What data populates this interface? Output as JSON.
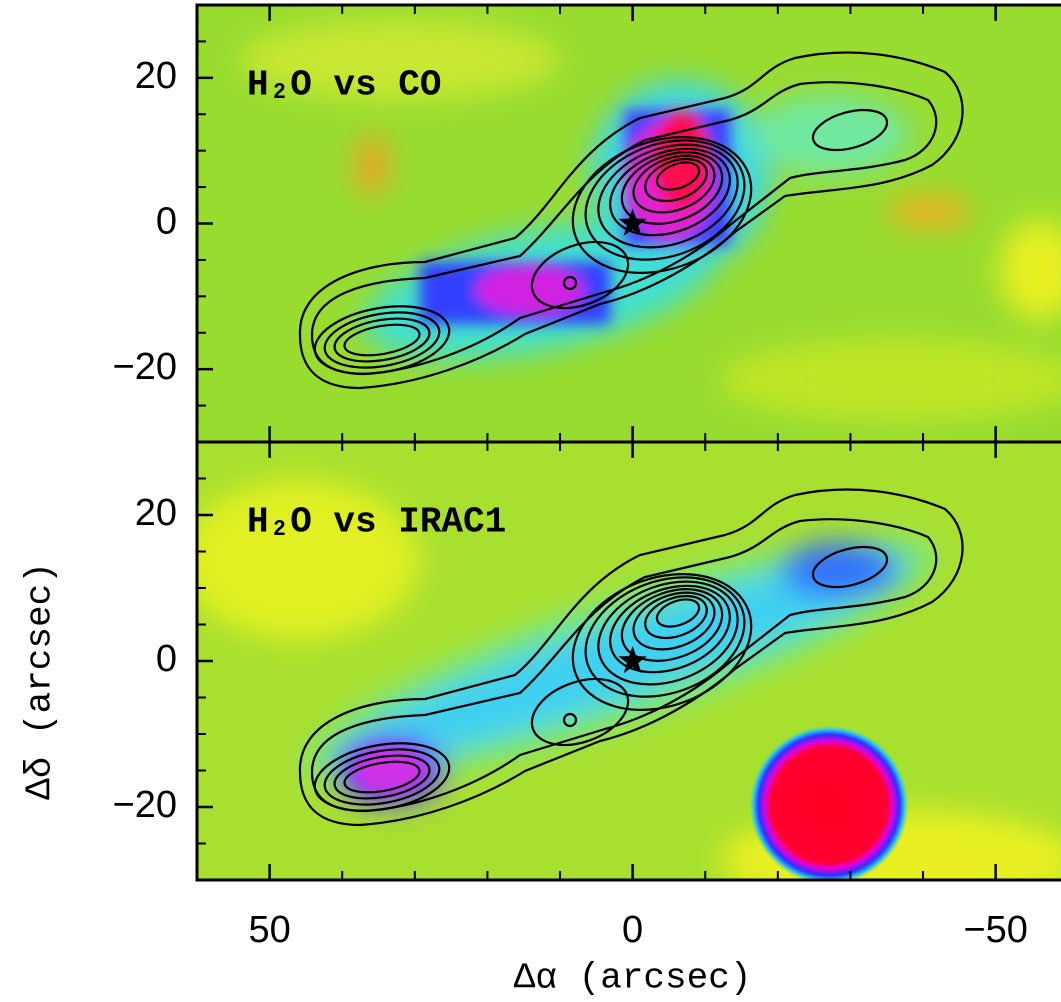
{
  "chart_data": [
    {
      "type": "map",
      "title": "H₂O vs CO",
      "xlim": [
        60,
        -59
      ],
      "xticks": [
        50,
        0,
        {
          "value": -50,
          "label": "−50"
        }
      ],
      "xminor": [
        40,
        30,
        20,
        10,
        -10,
        -20,
        -30,
        -40
      ],
      "show_xtick_labels": false,
      "ylim": [
        -30,
        30
      ],
      "yticks": [
        20,
        0,
        {
          "value": -20,
          "label": "−20"
        }
      ],
      "yminor": [
        25,
        15,
        10,
        5,
        -5,
        -10,
        -15,
        -25
      ],
      "marker": {
        "x": 0,
        "y": 0
      }
    },
    {
      "type": "map",
      "title": "H₂O vs IRAC1",
      "xlabel": "Δα (arcsec)",
      "ylabel": "Δδ (arcsec)",
      "xlim": [
        60,
        -59
      ],
      "xticks": [
        50,
        0,
        {
          "value": -50,
          "label": "−50"
        }
      ],
      "xminor": [
        40,
        30,
        20,
        10,
        -10,
        -20,
        -30,
        -40
      ],
      "show_xtick_labels": true,
      "ylim": [
        -30,
        30
      ],
      "yticks": [
        20,
        0,
        {
          "value": -20,
          "label": "−20"
        }
      ],
      "yminor": [
        25,
        15,
        10,
        5,
        -5,
        -10,
        -15,
        -25
      ],
      "marker": {
        "x": 0,
        "y": 0
      }
    }
  ]
}
